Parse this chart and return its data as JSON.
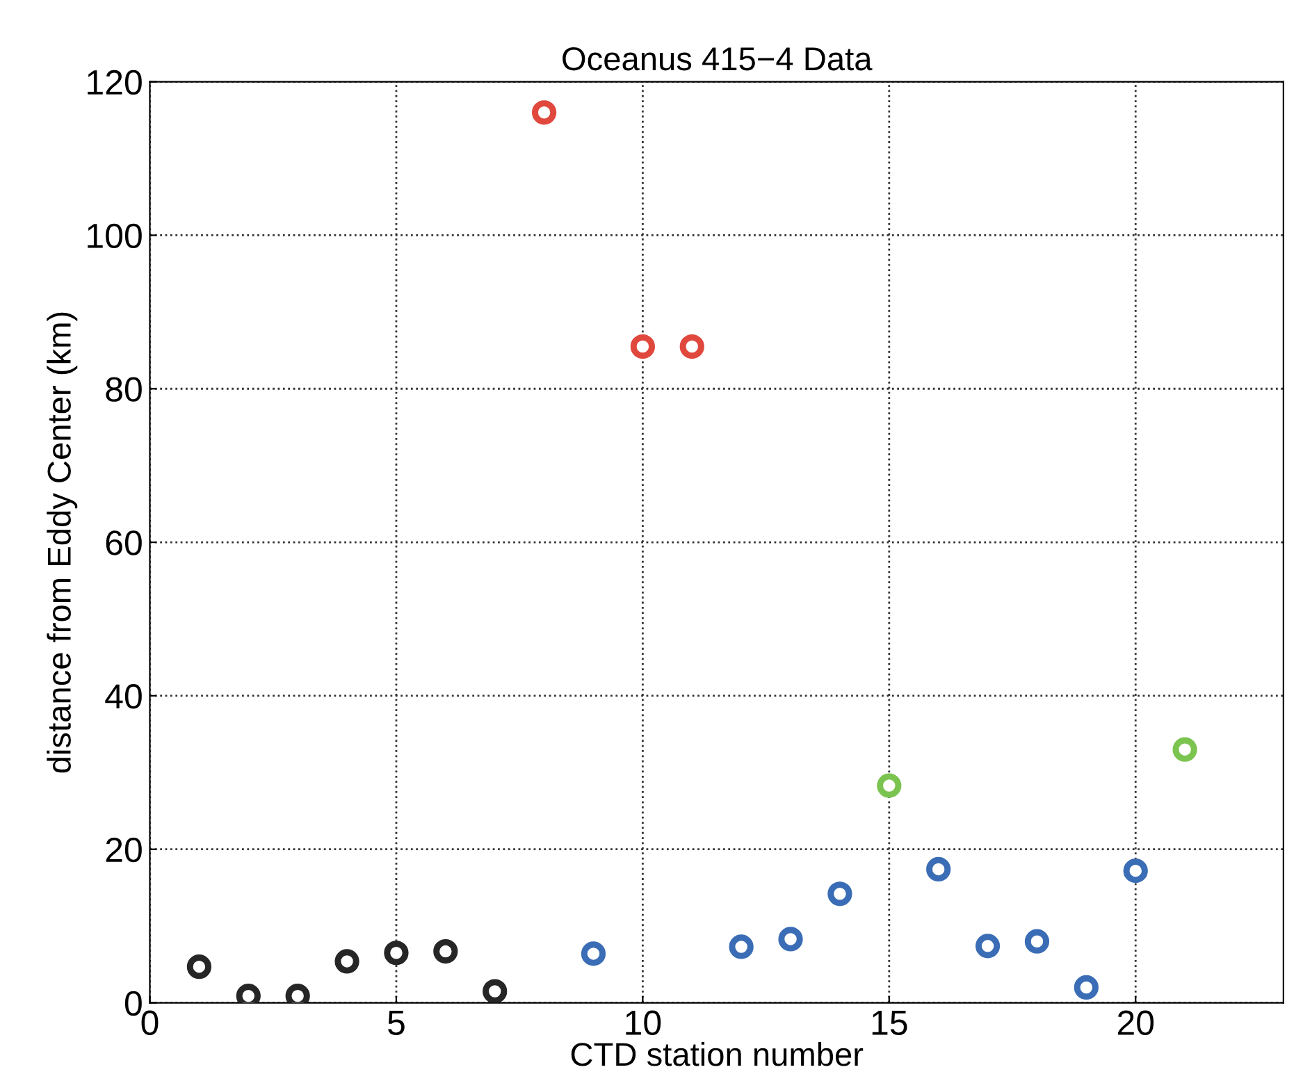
{
  "chart_data": {
    "type": "scatter",
    "title": "Oceanus 415−4 Data",
    "xlabel": "CTD station number",
    "ylabel": "distance from Eddy Center (km)",
    "series": [
      {
        "color": "#262626",
        "x": [
          1,
          2,
          3,
          4,
          5,
          6,
          7
        ],
        "values": [
          4.7,
          0.9,
          0.9,
          5.4,
          6.5,
          6.7,
          1.5
        ]
      },
      {
        "color": "#e0483e",
        "x": [
          8,
          10,
          11
        ],
        "values": [
          116,
          85.5,
          85.5
        ]
      },
      {
        "color": "#3a6db5",
        "x": [
          9,
          12,
          13,
          14,
          16,
          17,
          18,
          19,
          20
        ],
        "values": [
          6.4,
          7.3,
          8.3,
          14.2,
          17.4,
          7.4,
          8.0,
          2.0,
          17.2
        ]
      },
      {
        "color": "#7cc450",
        "x": [
          15,
          21
        ],
        "values": [
          28.3,
          33.0
        ]
      }
    ],
    "xlim": [
      0,
      23
    ],
    "xticks": [
      0,
      5,
      10,
      15,
      20
    ],
    "ylim": [
      0,
      120
    ],
    "yticks": [
      0,
      20,
      40,
      60,
      80,
      100,
      120
    ],
    "grid": true,
    "marker": "circle",
    "legend": false
  }
}
